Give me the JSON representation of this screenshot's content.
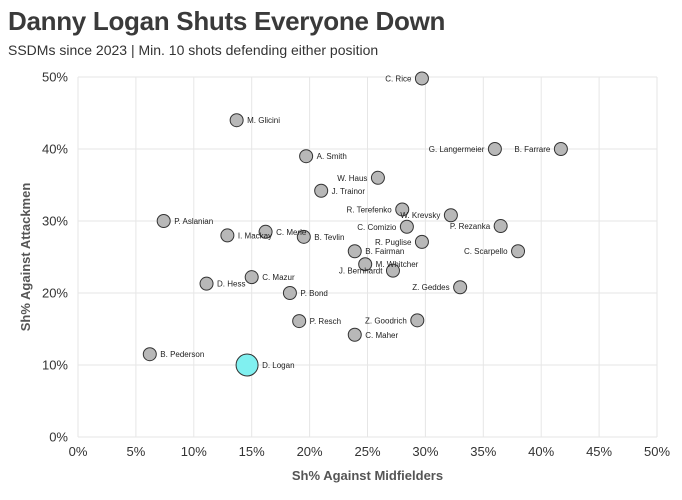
{
  "header": {
    "title": "Danny Logan Shuts Everyone Down",
    "subtitle": "SSDMs since 2023 | Min. 10 shots defending either position"
  },
  "colors": {
    "point_fill": "#b8b8b8",
    "point_stroke": "#333333",
    "highlight_fill": "#80f0f0",
    "grid": "#e6e6e6"
  },
  "chart_data": {
    "type": "scatter",
    "title": "Danny Logan Shuts Everyone Down",
    "subtitle": "SSDMs since 2023 | Min. 10 shots defending either position",
    "xlabel": "Sh% Against Midfielders",
    "ylabel": "Sh% Against Attackmen",
    "xlim": [
      0,
      50
    ],
    "ylim": [
      0,
      50
    ],
    "xticks": [
      "0%",
      "5%",
      "10%",
      "15%",
      "20%",
      "25%",
      "30%",
      "35%",
      "40%",
      "45%",
      "50%"
    ],
    "yticks": [
      "0%",
      "10%",
      "20%",
      "30%",
      "40%",
      "50%"
    ],
    "grid": true,
    "points": [
      {
        "label": "C. Rice",
        "x": 29.7,
        "y": 49.8,
        "side": "left"
      },
      {
        "label": "M. Glicini",
        "x": 13.7,
        "y": 44.0,
        "side": "right"
      },
      {
        "label": "G. Langermeier",
        "x": 36.0,
        "y": 40.0,
        "side": "left"
      },
      {
        "label": "B. Farrare",
        "x": 41.7,
        "y": 40.0,
        "side": "left"
      },
      {
        "label": "A. Smith",
        "x": 19.7,
        "y": 39.0,
        "side": "right"
      },
      {
        "label": "W. Haus",
        "x": 25.9,
        "y": 36.0,
        "side": "left"
      },
      {
        "label": "J. Trainor",
        "x": 21.0,
        "y": 34.2,
        "side": "right"
      },
      {
        "label": "R. Terefenko",
        "x": 28.0,
        "y": 31.6,
        "side": "left"
      },
      {
        "label": "W. Krevsky",
        "x": 32.2,
        "y": 30.8,
        "side": "left"
      },
      {
        "label": "P. Aslanian",
        "x": 7.4,
        "y": 30.0,
        "side": "right"
      },
      {
        "label": "C. Comizio",
        "x": 28.4,
        "y": 29.2,
        "side": "left"
      },
      {
        "label": "P. Rezanka",
        "x": 36.5,
        "y": 29.3,
        "side": "left"
      },
      {
        "label": "C. Merle",
        "x": 16.2,
        "y": 28.5,
        "side": "right"
      },
      {
        "label": "I. Mackay",
        "x": 12.9,
        "y": 28.0,
        "side": "right"
      },
      {
        "label": "B. Tevlin",
        "x": 19.5,
        "y": 27.8,
        "side": "right"
      },
      {
        "label": "R. Puglise",
        "x": 29.7,
        "y": 27.1,
        "side": "left"
      },
      {
        "label": "B. Fairman",
        "x": 23.9,
        "y": 25.8,
        "side": "right"
      },
      {
        "label": "C. Scarpello",
        "x": 38.0,
        "y": 25.8,
        "side": "left"
      },
      {
        "label": "M. Whitcher",
        "x": 24.8,
        "y": 24.0,
        "side": "right"
      },
      {
        "label": "J. Bernhardt",
        "x": 27.2,
        "y": 23.1,
        "side": "left"
      },
      {
        "label": "C. Mazur",
        "x": 15.0,
        "y": 22.2,
        "side": "right"
      },
      {
        "label": "D. Hess",
        "x": 11.1,
        "y": 21.3,
        "side": "right"
      },
      {
        "label": "Z. Geddes",
        "x": 33.0,
        "y": 20.8,
        "side": "left"
      },
      {
        "label": "P. Bond",
        "x": 18.3,
        "y": 20.0,
        "side": "right"
      },
      {
        "label": "P. Resch",
        "x": 19.1,
        "y": 16.1,
        "side": "right"
      },
      {
        "label": "Z. Goodrich",
        "x": 29.3,
        "y": 16.2,
        "side": "left"
      },
      {
        "label": "C. Maher",
        "x": 23.9,
        "y": 14.2,
        "side": "right"
      },
      {
        "label": "B. Pederson",
        "x": 6.2,
        "y": 11.5,
        "side": "right"
      },
      {
        "label": "D. Logan",
        "x": 14.6,
        "y": 10.0,
        "side": "right",
        "highlight": true
      }
    ]
  }
}
